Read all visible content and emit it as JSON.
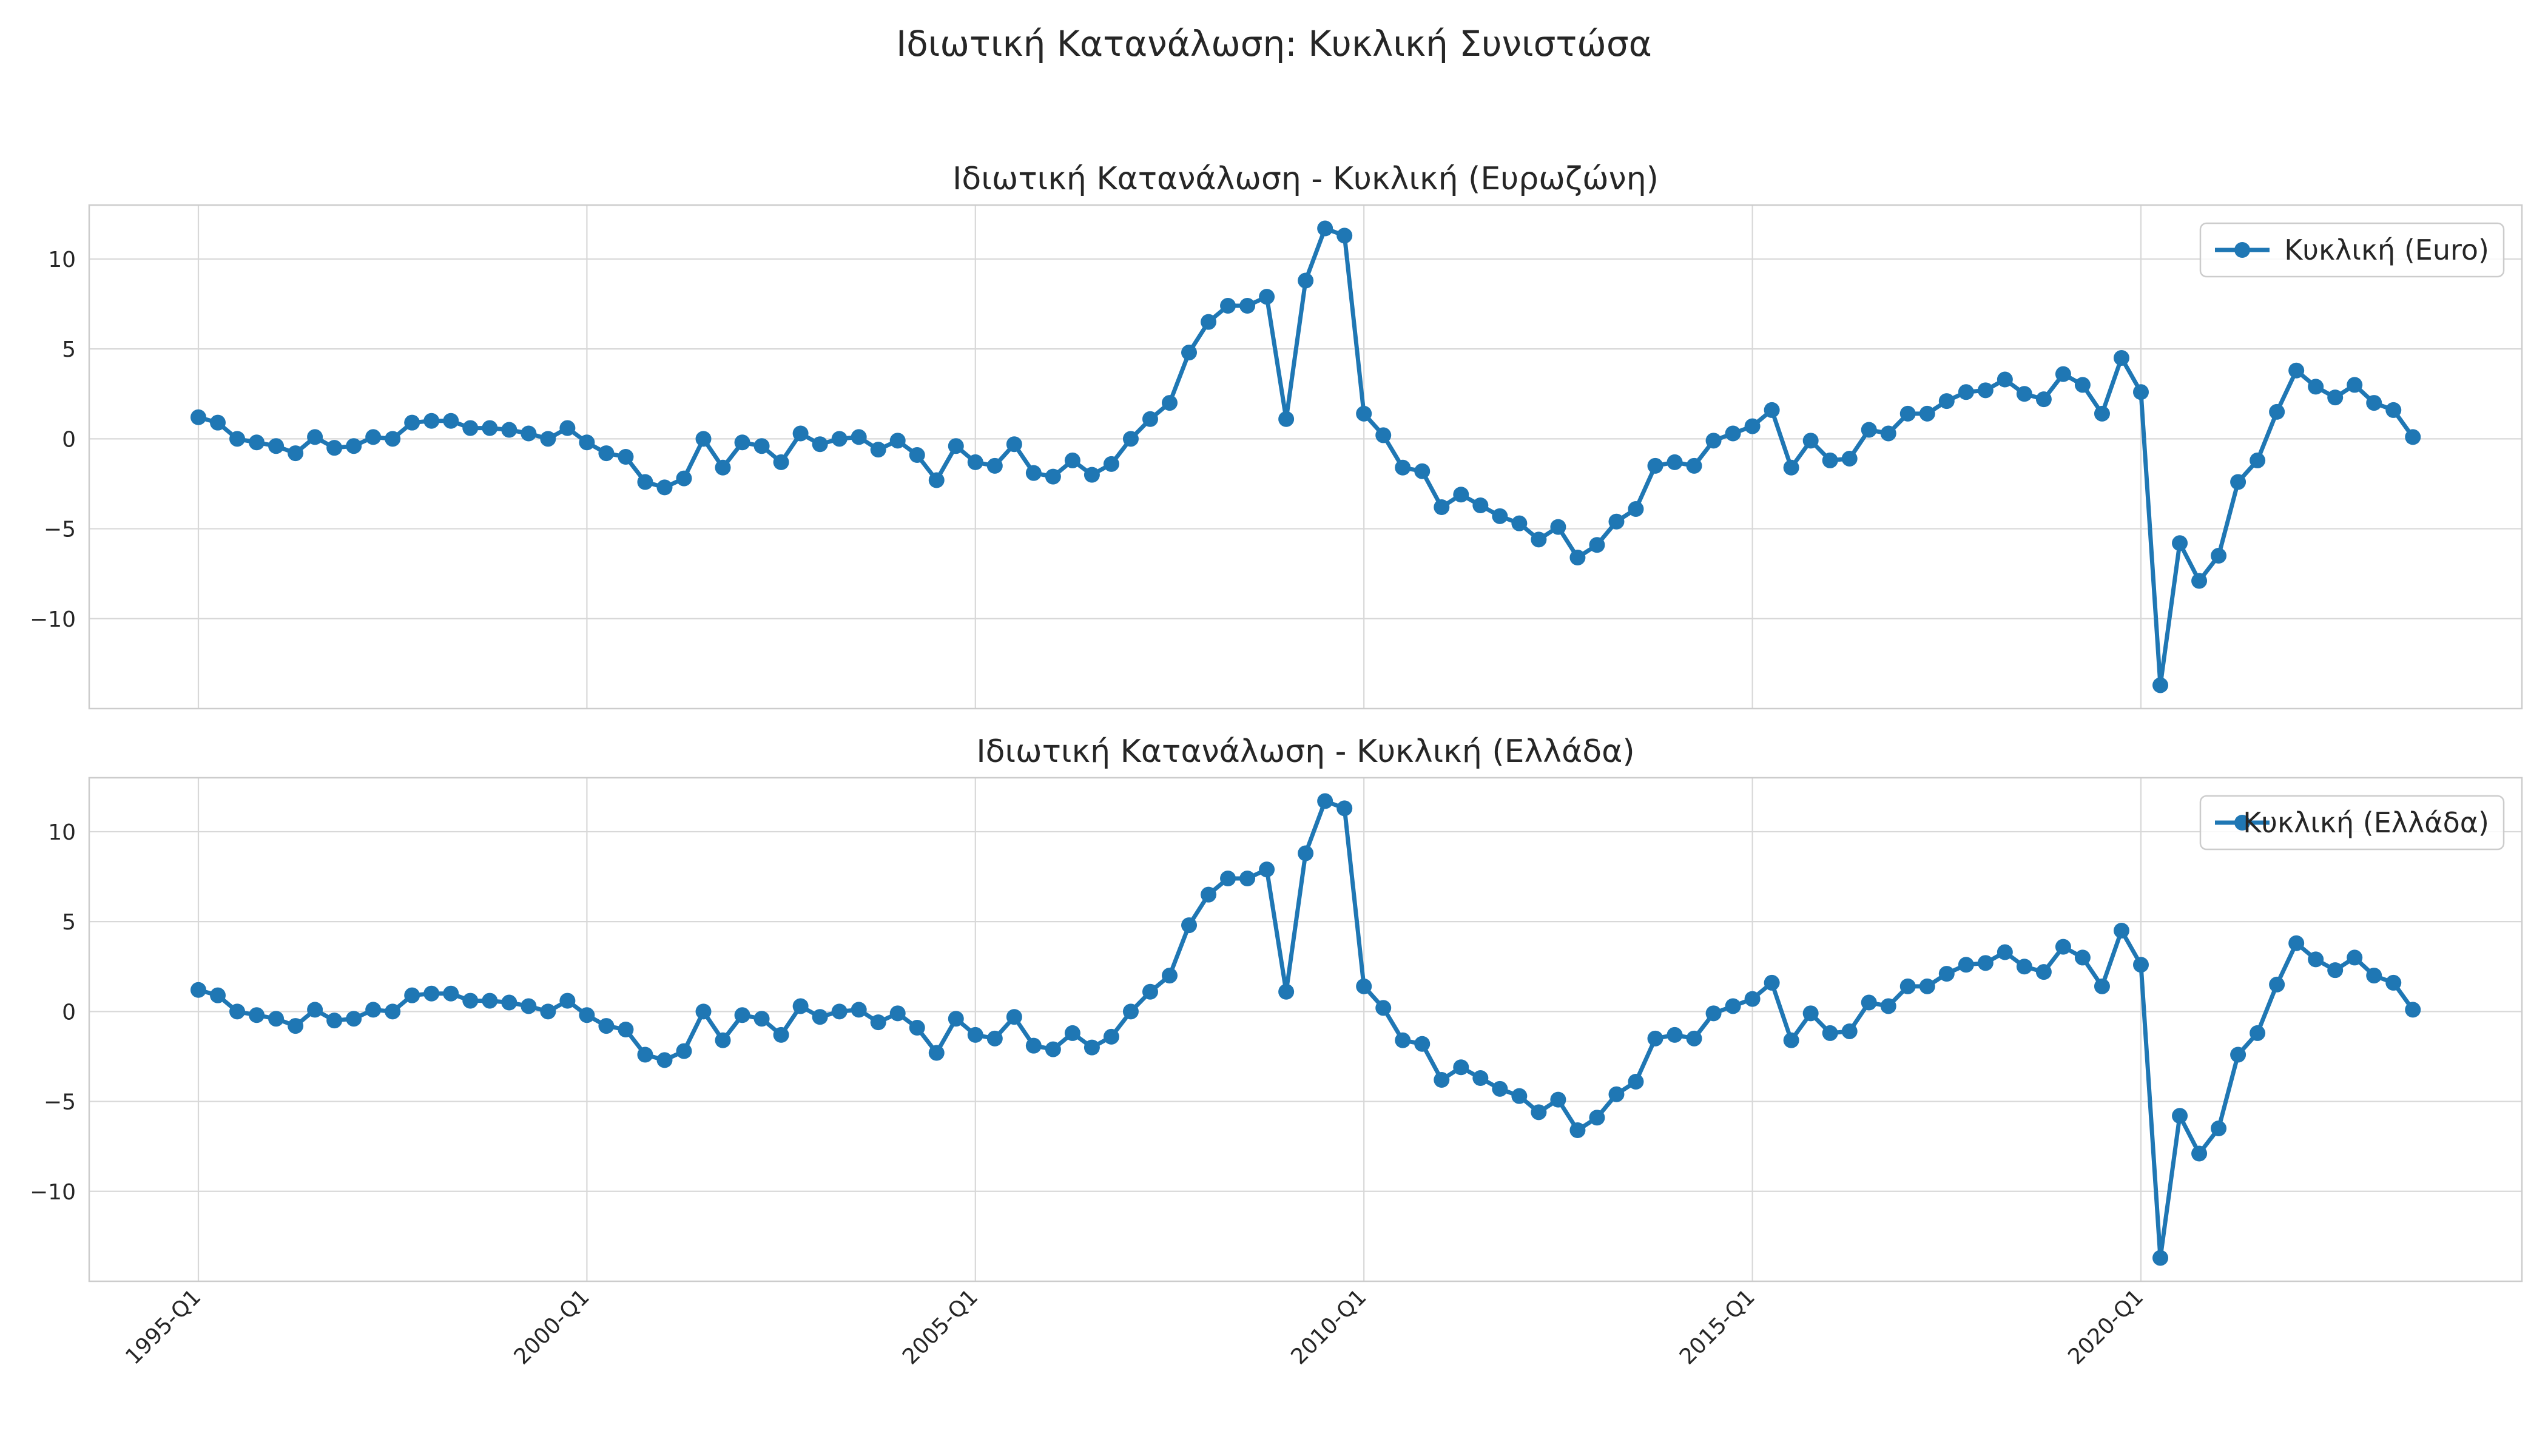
{
  "figure": {
    "suptitle": "Ιδιωτική Κατανάλωση: Κυκλική Συνιστώσα"
  },
  "style": {
    "line_color": "#1f77b4",
    "grid_color": "#d8d8d8",
    "frame_color": "#cccccc",
    "text_color": "#262626"
  },
  "chart_data": [
    {
      "type": "line",
      "title": "Ιδιωτική Κατανάλωση - Κυκλική (Ευρωζώνη)",
      "xlabel": "",
      "ylabel": "",
      "x_start": "1995-Q1",
      "x_ticks": [
        "1995-Q1",
        "2000-Q1",
        "2005-Q1",
        "2010-Q1",
        "2015-Q1",
        "2020-Q1"
      ],
      "y_ticks": [
        10,
        5,
        0,
        -5,
        -10
      ],
      "ylim": [
        -15,
        13
      ],
      "grid": true,
      "legend": "upper right",
      "series": [
        {
          "name": "Κυκλική (Euro)",
          "values": [
            1.2,
            0.9,
            0.0,
            -0.2,
            -0.4,
            -0.8,
            0.1,
            -0.5,
            -0.4,
            0.1,
            0.0,
            0.9,
            1.0,
            1.0,
            0.6,
            0.6,
            0.5,
            0.3,
            0.0,
            0.6,
            -0.2,
            -0.8,
            -1.0,
            -2.4,
            -2.7,
            -2.2,
            0.0,
            -1.6,
            -0.2,
            -0.4,
            -1.3,
            0.3,
            -0.3,
            0.0,
            0.1,
            -0.6,
            -0.1,
            -0.9,
            -2.3,
            -0.4,
            -1.3,
            -1.5,
            -0.3,
            -1.9,
            -2.1,
            -1.2,
            -2.0,
            -1.4,
            0.0,
            1.1,
            2.0,
            4.8,
            6.5,
            7.4,
            7.4,
            7.9,
            1.1,
            8.8,
            11.7,
            11.3,
            1.4,
            0.2,
            -1.6,
            -1.8,
            -3.8,
            -3.1,
            -3.7,
            -4.3,
            -4.7,
            -5.6,
            -4.9,
            -6.6,
            -5.9,
            -4.6,
            -3.9,
            -1.5,
            -1.3,
            -1.5,
            -0.1,
            0.3,
            0.7,
            1.6,
            -1.6,
            -0.1,
            -1.2,
            -1.1,
            0.5,
            0.3,
            1.4,
            1.4,
            2.1,
            2.6,
            2.7,
            3.3,
            2.5,
            2.2,
            3.6,
            3.0,
            1.4,
            4.5,
            2.6,
            -13.7,
            -5.8,
            -7.9,
            -6.5,
            -2.4,
            -1.2,
            1.5,
            3.8,
            2.9,
            2.3,
            3.0,
            2.0,
            1.6,
            0.1
          ]
        }
      ]
    },
    {
      "type": "line",
      "title": "Ιδιωτική Κατανάλωση - Κυκλική (Ελλάδα)",
      "xlabel": "",
      "ylabel": "",
      "x_start": "1995-Q1",
      "x_ticks": [
        "1995-Q1",
        "2000-Q1",
        "2005-Q1",
        "2010-Q1",
        "2015-Q1",
        "2020-Q1"
      ],
      "y_ticks": [
        10,
        5,
        0,
        -5,
        -10
      ],
      "ylim": [
        -15,
        13
      ],
      "grid": true,
      "legend": "upper right",
      "series": [
        {
          "name": "Κυκλική (Ελλάδα)",
          "values": [
            1.2,
            0.9,
            0.0,
            -0.2,
            -0.4,
            -0.8,
            0.1,
            -0.5,
            -0.4,
            0.1,
            0.0,
            0.9,
            1.0,
            1.0,
            0.6,
            0.6,
            0.5,
            0.3,
            0.0,
            0.6,
            -0.2,
            -0.8,
            -1.0,
            -2.4,
            -2.7,
            -2.2,
            0.0,
            -1.6,
            -0.2,
            -0.4,
            -1.3,
            0.3,
            -0.3,
            0.0,
            0.1,
            -0.6,
            -0.1,
            -0.9,
            -2.3,
            -0.4,
            -1.3,
            -1.5,
            -0.3,
            -1.9,
            -2.1,
            -1.2,
            -2.0,
            -1.4,
            0.0,
            1.1,
            2.0,
            4.8,
            6.5,
            7.4,
            7.4,
            7.9,
            1.1,
            8.8,
            11.7,
            11.3,
            1.4,
            0.2,
            -1.6,
            -1.8,
            -3.8,
            -3.1,
            -3.7,
            -4.3,
            -4.7,
            -5.6,
            -4.9,
            -6.6,
            -5.9,
            -4.6,
            -3.9,
            -1.5,
            -1.3,
            -1.5,
            -0.1,
            0.3,
            0.7,
            1.6,
            -1.6,
            -0.1,
            -1.2,
            -1.1,
            0.5,
            0.3,
            1.4,
            1.4,
            2.1,
            2.6,
            2.7,
            3.3,
            2.5,
            2.2,
            3.6,
            3.0,
            1.4,
            4.5,
            2.6,
            -13.7,
            -5.8,
            -7.9,
            -6.5,
            -2.4,
            -1.2,
            1.5,
            3.8,
            2.9,
            2.3,
            3.0,
            2.0,
            1.6,
            0.1
          ]
        }
      ]
    }
  ]
}
